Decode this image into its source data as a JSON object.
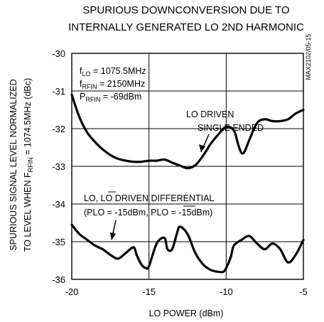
{
  "chart_data": {
    "type": "line",
    "title_lines": [
      "SPURIOUS DOWNCONVERSION DUE TO",
      "INTERNALLY GENERATED LO 2ND HARMONIC"
    ],
    "xlabel": "LO POWER (dBm)",
    "ylabel_lines": [
      "SPURIOUS SIGNAL LEVEL NORMALIZED",
      "TO LEVEL WHEN F|RFIN| = 1074.5MHz (dBc)"
    ],
    "xlim": [
      -20,
      -5
    ],
    "ylim": [
      -36,
      -30
    ],
    "x_ticks": [
      -20,
      -15,
      -10,
      -5
    ],
    "y_ticks": [
      -30,
      -31,
      -32,
      -33,
      -34,
      -35,
      -36
    ],
    "x_tick_labels": [
      "-20",
      "-15",
      "-10",
      "-5"
    ],
    "y_tick_labels": [
      "-30",
      "-31",
      "-32",
      "-33",
      "-34",
      "-35",
      "-36"
    ],
    "grid": true,
    "figure_id": "MAX2102/05-15",
    "conditions": [
      {
        "main": "f",
        "sub": "LO",
        "rest": " = 1075.5MHz"
      },
      {
        "main": "f",
        "sub": "RFIN",
        "rest": " = 2150MHz"
      },
      {
        "main": "P",
        "sub": "RFIN",
        "rest": " = -69dBm"
      }
    ],
    "annotations": {
      "single_ended": [
        "LO DRIVEN",
        "SINGLE ENDED"
      ],
      "differential_line1": "LO, LO DRIVEN DIFFERENTIAL",
      "differential_line2": "(PLO = -15dBm, PLO = -15dBm)"
    },
    "series": [
      {
        "label_ref": "single_ended",
        "x": [
          -20,
          -19.5,
          -19,
          -18.5,
          -18,
          -17.5,
          -17,
          -16.5,
          -16,
          -15.5,
          -15,
          -14.5,
          -14,
          -13.5,
          -13,
          -12.5,
          -12,
          -11.5,
          -11,
          -10.5,
          -10,
          -9.5,
          -9.2,
          -9,
          -8.8,
          -8.5,
          -8,
          -7.5,
          -7,
          -6.5,
          -6,
          -5.5,
          -5
        ],
        "y": [
          -31.1,
          -31.7,
          -32.1,
          -32.35,
          -32.55,
          -32.7,
          -32.8,
          -32.85,
          -32.88,
          -32.88,
          -32.85,
          -32.85,
          -32.82,
          -32.9,
          -32.98,
          -33.05,
          -32.97,
          -32.72,
          -32.4,
          -32.15,
          -31.95,
          -32.05,
          -32.45,
          -32.65,
          -32.6,
          -32.3,
          -31.85,
          -31.75,
          -31.8,
          -31.8,
          -31.75,
          -31.6,
          -31.5
        ]
      },
      {
        "label_ref": "differential",
        "x": [
          -20,
          -19.5,
          -19,
          -18.5,
          -18,
          -17.5,
          -17,
          -16.5,
          -16,
          -15.8,
          -15.5,
          -15.2,
          -15,
          -14.5,
          -14,
          -13.8,
          -13.5,
          -13.2,
          -13,
          -12.5,
          -12,
          -11.5,
          -11,
          -10.5,
          -10.2,
          -10,
          -9.7,
          -9.5,
          -9,
          -8.5,
          -8,
          -7.5,
          -7,
          -6.5,
          -6,
          -5.5,
          -5
        ],
        "y": [
          -34.55,
          -34.8,
          -34.95,
          -35.1,
          -35.2,
          -35.35,
          -35.45,
          -35.3,
          -35.15,
          -35.35,
          -35.6,
          -35.7,
          -35.65,
          -35.05,
          -34.9,
          -35.2,
          -35.2,
          -34.8,
          -34.6,
          -34.8,
          -35.3,
          -35.6,
          -35.75,
          -35.8,
          -35.8,
          -35.7,
          -35.4,
          -35.1,
          -34.95,
          -34.85,
          -35.05,
          -35.2,
          -35.05,
          -35.2,
          -35.55,
          -35.35,
          -34.95
        ]
      }
    ]
  }
}
